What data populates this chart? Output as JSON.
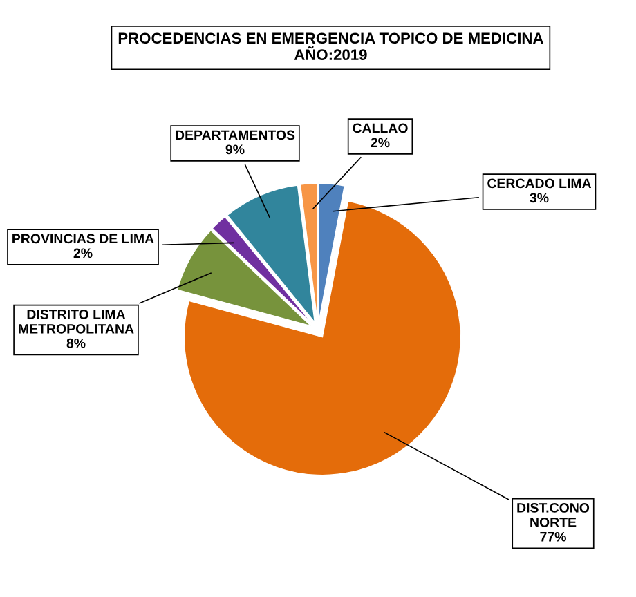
{
  "chart_data": {
    "type": "pie",
    "title": "PROCEDENCIAS EN EMERGENCIA TOPICO DE MEDICINA\nAÑO:2019",
    "categories": [
      "CERCADO LIMA",
      "DIST.CONO\nNORTE",
      "DISTRITO LIMA\nMETROPOLITANA",
      "PROVINCIAS DE LIMA",
      "DEPARTAMENTOS",
      "CALLAO"
    ],
    "values": [
      3,
      77,
      8,
      2,
      9,
      2
    ],
    "colors": [
      "#4f81bd",
      "#e46c0a",
      "#77933c",
      "#7030a0",
      "#31859c",
      "#f79646"
    ],
    "value_labels": [
      "3%",
      "77%",
      "8%",
      "2%",
      "9%",
      "2%"
    ],
    "legend": false
  }
}
